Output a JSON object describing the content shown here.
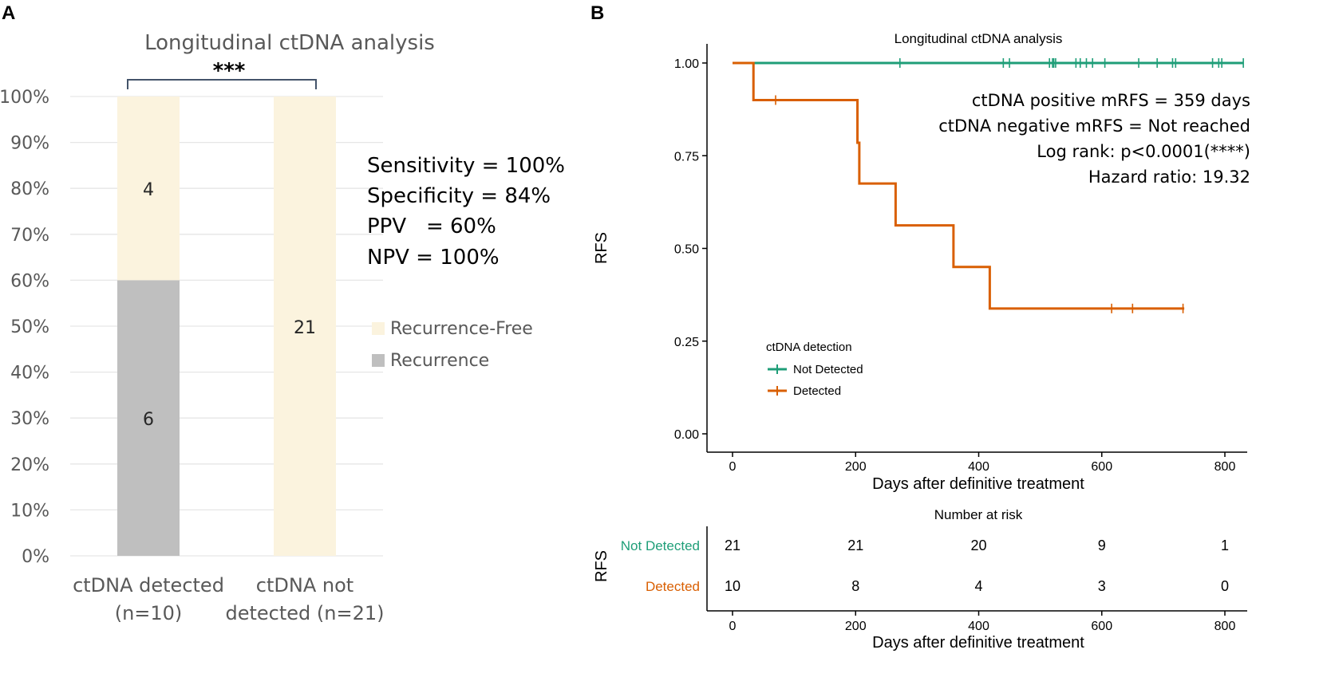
{
  "panel_a": {
    "letter": "A",
    "significance": "***",
    "colors": {
      "recurrence": "#bfbfbf",
      "recurrence_free": "#fbf3de",
      "grid": "#e6e6e6",
      "text": "#595959",
      "bracket": "#44546a"
    },
    "stats": [
      "Sensitivity = 100%",
      "Specificity = 84%",
      "PPV   = 60%",
      "NPV = 100%"
    ],
    "legend": [
      {
        "name": "Recurrence-Free",
        "color": "#fbf3de"
      },
      {
        "name": "Recurrence",
        "color": "#bfbfbf"
      }
    ]
  },
  "panel_b": {
    "letter": "B",
    "colors": {
      "not_detected": "#1f9e78",
      "detected": "#d95f02",
      "axis": "#000000"
    },
    "km": {
      "legend_title": "ctDNA detection",
      "annotations": [
        "ctDNA positive mRFS = 359 days",
        "ctDNA negative mRFS = Not reached",
        "Log rank: p<0.0001(****)",
        "Hazard ratio: 19.32"
      ]
    },
    "risk_table": {
      "title": "Number at risk",
      "ylabel": "RFS",
      "xlabel": "Days after definitive treatment",
      "times": [
        0,
        200,
        400,
        600,
        800
      ],
      "time_tick_labels": [
        "0",
        "200",
        "400",
        "600",
        "800"
      ],
      "rows": [
        {
          "label": "Not Detected",
          "counts": [
            "21",
            "21",
            "20",
            "9",
            "1"
          ]
        },
        {
          "label": "Detected",
          "counts": [
            "10",
            "8",
            "4",
            "3",
            "0"
          ]
        }
      ]
    }
  },
  "chart_data": [
    {
      "type": "bar",
      "stacked": true,
      "percent": true,
      "title": "Longitudinal ctDNA analysis",
      "categories": [
        "ctDNA detected\n(n=10)",
        "ctDNA not\ndetected (n=21)"
      ],
      "series": [
        {
          "name": "Recurrence",
          "values": [
            6,
            0
          ]
        },
        {
          "name": "Recurrence-Free",
          "values": [
            4,
            21
          ]
        }
      ],
      "ylim": [
        0,
        100
      ],
      "yticks": [
        "0%",
        "10%",
        "20%",
        "30%",
        "40%",
        "50%",
        "60%",
        "70%",
        "80%",
        "90%",
        "100%"
      ],
      "xlabel": "",
      "ylabel": "",
      "grid": true,
      "legend_position": "right"
    },
    {
      "type": "line",
      "title": "Longitudinal ctDNA analysis",
      "xlabel": "Days after definitive treatment",
      "ylabel": "RFS",
      "xlim": [
        0,
        830
      ],
      "ylim": [
        0,
        1
      ],
      "xticks": [
        0,
        200,
        400,
        600,
        800
      ],
      "xtick_labels": [
        "0",
        "200",
        "400",
        "600",
        "800"
      ],
      "yticks": [
        0,
        0.25,
        0.5,
        0.75,
        1.0
      ],
      "ytick_labels": [
        "0.00",
        "0.25",
        "0.50",
        "0.75",
        "1.00"
      ],
      "legend_title": "ctDNA detection",
      "legend_position": "center-left",
      "series": [
        {
          "name": "Not Detected",
          "step": true,
          "x": [
            0,
            830
          ],
          "y": [
            1.0,
            1.0
          ],
          "censored_x": [
            272,
            440,
            450,
            515,
            520,
            522,
            525,
            558,
            565,
            575,
            585,
            605,
            660,
            690,
            715,
            720,
            780,
            790,
            795,
            830
          ]
        },
        {
          "name": "Detected",
          "step": true,
          "x": [
            0,
            34,
            203,
            206,
            265,
            359,
            418,
            734
          ],
          "y": [
            1.0,
            0.9,
            0.785,
            0.675,
            0.562,
            0.45,
            0.338,
            0.338
          ],
          "censored_x": [
            70,
            616,
            650,
            732
          ]
        }
      ]
    }
  ]
}
